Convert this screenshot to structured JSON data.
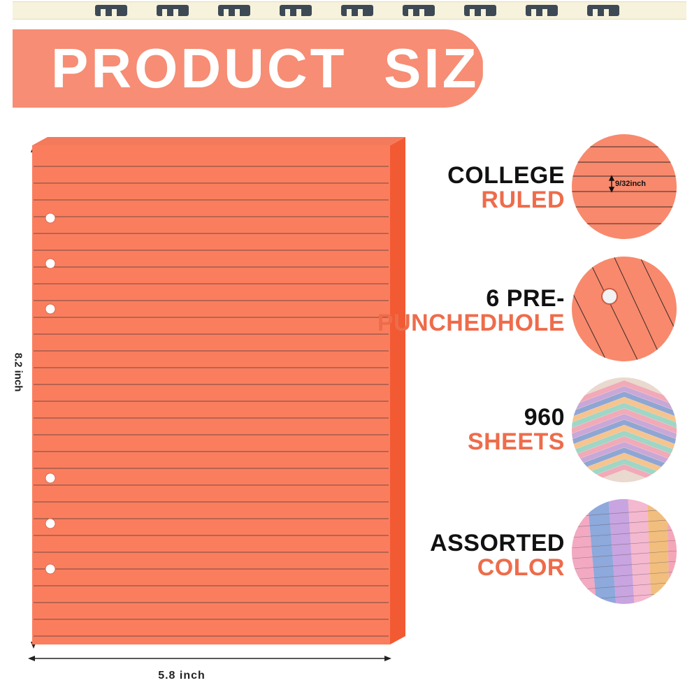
{
  "header": {
    "title": "PRODUCT  SIZE"
  },
  "dimensions": {
    "height": "8.2 inch",
    "width": "5.8 inch"
  },
  "features": [
    {
      "line1": "COLLEGE",
      "line2": "RULED",
      "detail": "9/32inch"
    },
    {
      "line1": "6  PRE-",
      "line2": "PUNCHEDHOLE"
    },
    {
      "line1": "960",
      "line2": "SHEETS"
    },
    {
      "line1": "ASSORTED",
      "line2": "COLOR"
    }
  ],
  "colors": {
    "paper": "#fa7e5e",
    "paper_edge": "#f25a33",
    "accent_text": "#ee6c4b",
    "banner": "#f68d74"
  },
  "icons": [
    "binder-ring-icon",
    "punch-hole-icon",
    "arrow-icon"
  ]
}
